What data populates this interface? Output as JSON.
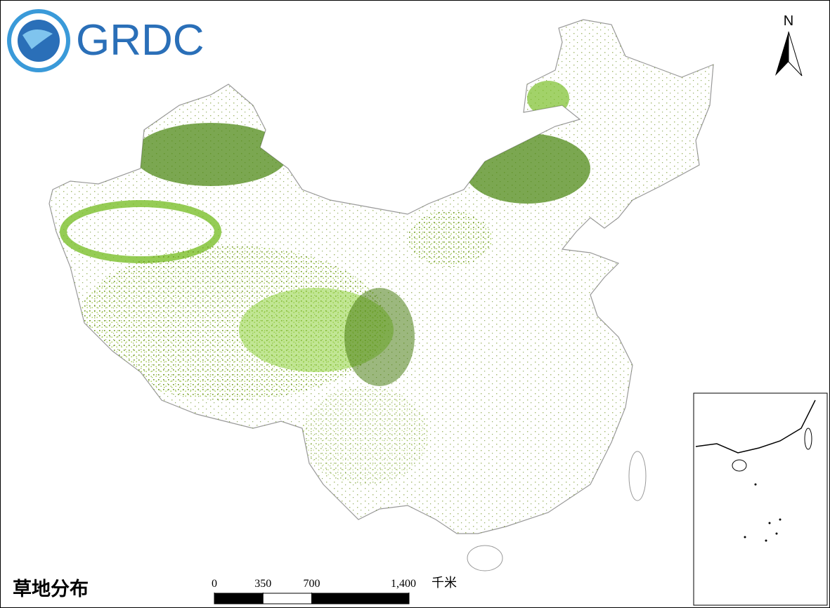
{
  "logo": {
    "text": "GRDC"
  },
  "north_arrow": {
    "label": "N"
  },
  "title": "草地分布",
  "scale_bar": {
    "ticks": [
      0,
      350,
      700,
      {
        "value": 1400,
        "label": "1,400"
      }
    ],
    "unit": "千米"
  }
}
